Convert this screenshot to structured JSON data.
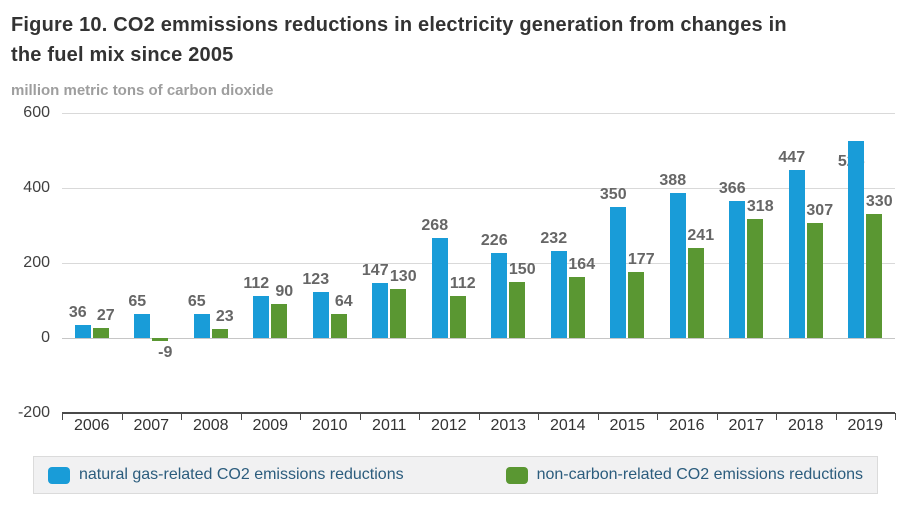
{
  "figure": {
    "title": "Figure 10. CO2 emmissions reductions in electricity generation from changes in the fuel mix since 2005",
    "subtitle": "million metric tons of carbon dioxide"
  },
  "chart_data": {
    "type": "bar",
    "title": "Figure 10. CO2 emmissions reductions in electricity generation from changes in the fuel mix since 2005",
    "ylabel": "million metric tons of carbon dioxide",
    "categories": [
      "2006",
      "2007",
      "2008",
      "2009",
      "2010",
      "2011",
      "2012",
      "2013",
      "2014",
      "2015",
      "2016",
      "2017",
      "2018",
      "2019"
    ],
    "series": [
      {
        "name": "natural gas-related CO2 emissions reductions",
        "color": "#199cd8",
        "values": [
          36,
          65,
          65,
          112,
          123,
          147,
          268,
          226,
          232,
          350,
          388,
          366,
          447,
          525
        ]
      },
      {
        "name": "non-carbon-related CO2 emissions reductions",
        "color": "#5a9732",
        "values": [
          27,
          -9,
          23,
          90,
          64,
          130,
          112,
          150,
          164,
          177,
          241,
          318,
          307,
          330
        ]
      }
    ],
    "ylim": [
      -200,
      600
    ],
    "y_ticks": [
      600,
      400,
      200,
      0,
      -200
    ],
    "grid": true,
    "legend_position": "bottom",
    "data_labels": true
  },
  "colors": {
    "gridline": "#d9d9d9",
    "zero_line": "#c6c6c6",
    "axis": "#4a4a4a",
    "value_label": "#666666",
    "tick_label": "#404040",
    "title": "#333333",
    "subtitle": "#9e9e9e",
    "legend_text": "#2b5c7d",
    "legend_background": "#f1f1f2"
  }
}
